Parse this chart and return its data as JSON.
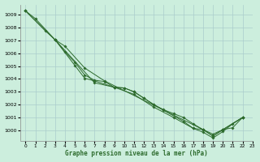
{
  "title": "Graphe pression niveau de la mer (hPa)",
  "background_color": "#cceedd",
  "grid_color": "#aacccc",
  "line_color": "#2d6b2d",
  "xlim": [
    -0.5,
    23
  ],
  "ylim": [
    999.2,
    1009.8
  ],
  "yticks": [
    1000,
    1001,
    1002,
    1003,
    1004,
    1005,
    1006,
    1007,
    1008,
    1009
  ],
  "xticks": [
    0,
    1,
    2,
    3,
    4,
    5,
    6,
    7,
    8,
    9,
    10,
    11,
    12,
    13,
    14,
    15,
    16,
    17,
    18,
    19,
    20,
    21,
    22,
    23
  ],
  "series": [
    {
      "x": [
        0,
        1,
        3,
        4,
        5,
        6,
        7,
        8,
        9,
        10,
        11,
        12,
        13,
        14,
        16,
        17,
        18,
        19,
        20,
        21,
        22
      ],
      "y": [
        1009.3,
        1008.7,
        1007.05,
        1006.1,
        1005.3,
        1004.3,
        1003.9,
        1003.8,
        1003.35,
        1003.3,
        1003.0,
        1002.5,
        1002.0,
        1001.55,
        1000.7,
        1000.15,
        1000.05,
        999.55,
        1000.05,
        1000.2,
        1001.0
      ]
    },
    {
      "x": [
        0,
        2,
        3,
        4,
        6,
        8,
        18,
        19,
        20,
        22
      ],
      "y": [
        1009.3,
        1007.75,
        1007.05,
        1006.55,
        1004.85,
        1003.85,
        1000.05,
        999.7,
        1000.05,
        1001.0
      ]
    },
    {
      "x": [
        0,
        3,
        5,
        6,
        7,
        9,
        10,
        11,
        12,
        13,
        14,
        15,
        16,
        17,
        18,
        19,
        20,
        22
      ],
      "y": [
        1009.3,
        1007.05,
        1005.05,
        1004.05,
        1003.85,
        1003.35,
        1003.3,
        1003.0,
        1002.5,
        1002.0,
        1001.6,
        1001.3,
        1001.0,
        1000.5,
        1000.05,
        999.55,
        1000.05,
        1001.0
      ]
    },
    {
      "x": [
        3,
        7,
        9,
        11,
        13,
        15,
        17,
        18,
        19,
        20,
        21,
        22
      ],
      "y": [
        1007.05,
        1003.7,
        1003.35,
        1002.8,
        1001.8,
        1001.0,
        1000.15,
        999.85,
        999.4,
        999.9,
        1000.5,
        1001.0
      ]
    }
  ]
}
